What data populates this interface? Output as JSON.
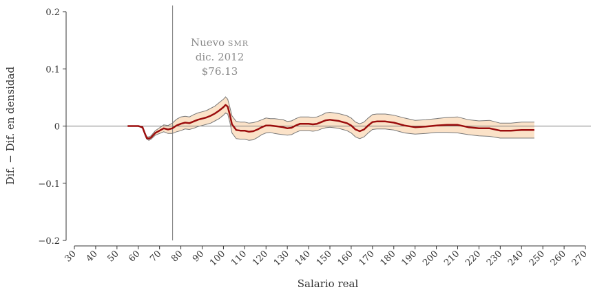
{
  "chart_data": {
    "type": "line",
    "xlabel": "Salario real",
    "ylabel": "Dif. − Dif. en densidad",
    "xlim": [
      30,
      270
    ],
    "ylim": [
      -0.2,
      0.2
    ],
    "x_ticks": [
      30,
      40,
      50,
      60,
      70,
      80,
      90,
      100,
      110,
      120,
      130,
      140,
      150,
      160,
      170,
      180,
      190,
      200,
      210,
      220,
      230,
      240,
      250,
      260,
      270
    ],
    "y_ticks": [
      {
        "value": 0.2,
        "label": "0.2"
      },
      {
        "value": 0.1,
        "label": "0.1"
      },
      {
        "value": 0,
        "label": "0"
      },
      {
        "value": -0.1,
        "label": "−0.1"
      },
      {
        "value": -0.2,
        "label": "−0.2"
      }
    ],
    "reference_line": {
      "x": 76.13
    },
    "annotation": {
      "lines": [
        "Nuevo smr",
        "dic. 2012",
        "$76.13"
      ]
    },
    "colors": {
      "line": "#9b0d0d",
      "band_fill": "#fbe2c8",
      "band_edge": "#777777",
      "axis": "#333333",
      "refline": "#777777"
    },
    "series": [
      {
        "x": [
          55,
          58,
          60,
          62,
          63,
          64,
          65,
          66,
          68,
          70,
          72,
          74,
          76,
          78,
          80,
          82,
          84,
          86,
          88,
          90,
          92,
          94,
          96,
          98,
          100,
          101,
          102,
          103,
          104,
          106,
          108,
          110,
          112,
          114,
          116,
          118,
          120,
          122,
          124,
          126,
          128,
          130,
          132,
          134,
          136,
          138,
          140,
          142,
          144,
          146,
          148,
          150,
          152,
          154,
          156,
          158,
          160,
          162,
          164,
          166,
          168,
          170,
          172,
          174,
          176,
          178,
          180,
          185,
          190,
          195,
          200,
          205,
          210,
          215,
          220,
          225,
          230,
          235,
          240,
          246
        ],
        "y": [
          0,
          0,
          0,
          -0.002,
          -0.012,
          -0.021,
          -0.022,
          -0.02,
          -0.012,
          -0.008,
          -0.004,
          -0.006,
          -0.004,
          0.001,
          0.004,
          0.006,
          0.005,
          0.008,
          0.011,
          0.013,
          0.015,
          0.018,
          0.022,
          0.027,
          0.033,
          0.037,
          0.034,
          0.02,
          0.003,
          -0.007,
          -0.008,
          -0.008,
          -0.01,
          -0.009,
          -0.006,
          -0.002,
          0.001,
          0.001,
          0,
          -0.001,
          -0.002,
          -0.004,
          -0.003,
          0.001,
          0.004,
          0.004,
          0.004,
          0.003,
          0.004,
          0.007,
          0.01,
          0.011,
          0.01,
          0.009,
          0.007,
          0.005,
          0.001,
          -0.006,
          -0.009,
          -0.006,
          0.001,
          0.007,
          0.008,
          0.008,
          0.008,
          0.007,
          0.006,
          0.001,
          -0.002,
          -0.001,
          0.001,
          0.002,
          0.002,
          -0.002,
          -0.004,
          -0.004,
          -0.008,
          -0.008,
          -0.007,
          -0.007
        ],
        "lower": [
          0,
          0,
          0,
          -0.004,
          -0.014,
          -0.023,
          -0.025,
          -0.023,
          -0.016,
          -0.013,
          -0.01,
          -0.013,
          -0.013,
          -0.01,
          -0.008,
          -0.005,
          -0.006,
          -0.004,
          -0.001,
          0.001,
          0.003,
          0.005,
          0.009,
          0.013,
          0.019,
          0.023,
          0.021,
          0.007,
          -0.012,
          -0.022,
          -0.023,
          -0.023,
          -0.025,
          -0.024,
          -0.02,
          -0.015,
          -0.012,
          -0.011,
          -0.013,
          -0.014,
          -0.015,
          -0.016,
          -0.015,
          -0.011,
          -0.008,
          -0.008,
          -0.008,
          -0.009,
          -0.008,
          -0.005,
          -0.003,
          -0.002,
          -0.003,
          -0.004,
          -0.006,
          -0.008,
          -0.012,
          -0.019,
          -0.022,
          -0.019,
          -0.012,
          -0.006,
          -0.005,
          -0.005,
          -0.005,
          -0.006,
          -0.007,
          -0.012,
          -0.014,
          -0.013,
          -0.011,
          -0.011,
          -0.012,
          -0.015,
          -0.017,
          -0.018,
          -0.021,
          -0.021,
          -0.021,
          -0.021
        ],
        "upper": [
          0,
          0,
          0,
          0,
          -0.01,
          -0.019,
          -0.019,
          -0.017,
          -0.008,
          -0.003,
          0.002,
          0.001,
          0.005,
          0.012,
          0.016,
          0.017,
          0.016,
          0.02,
          0.023,
          0.025,
          0.027,
          0.031,
          0.035,
          0.041,
          0.047,
          0.051,
          0.047,
          0.033,
          0.018,
          0.008,
          0.007,
          0.007,
          0.005,
          0.006,
          0.008,
          0.011,
          0.014,
          0.013,
          0.013,
          0.012,
          0.011,
          0.008,
          0.009,
          0.013,
          0.016,
          0.016,
          0.016,
          0.015,
          0.016,
          0.019,
          0.023,
          0.024,
          0.023,
          0.022,
          0.02,
          0.018,
          0.014,
          0.007,
          0.004,
          0.007,
          0.014,
          0.02,
          0.021,
          0.021,
          0.021,
          0.02,
          0.019,
          0.014,
          0.01,
          0.011,
          0.013,
          0.015,
          0.016,
          0.011,
          0.009,
          0.01,
          0.005,
          0.005,
          0.007,
          0.007
        ]
      }
    ]
  }
}
